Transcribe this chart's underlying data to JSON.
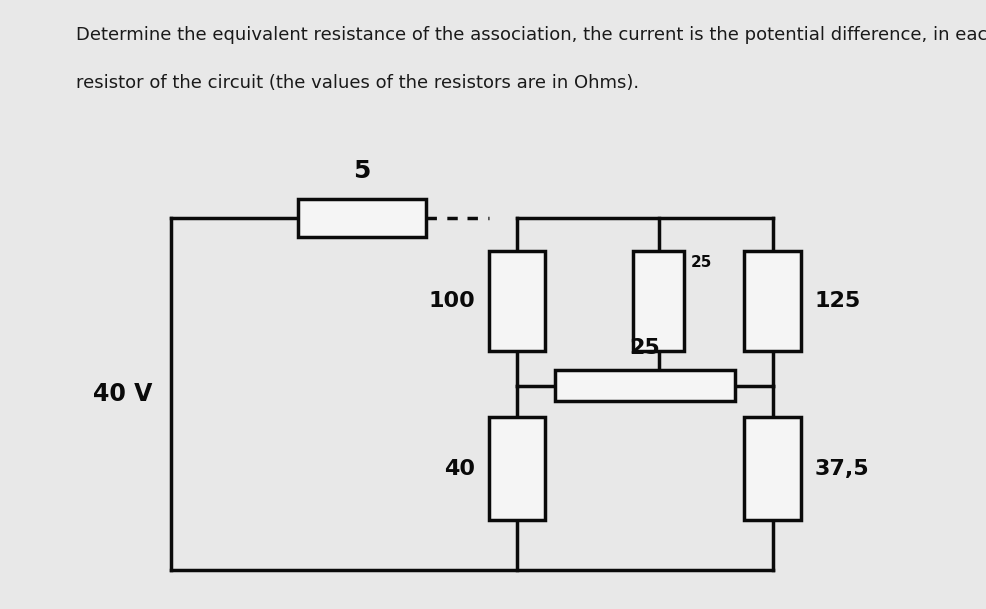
{
  "title_line1": "Determine the equivalent resistance of the association, the current is the potential difference, in each",
  "title_line2": "resistor of the circuit (the values of the resistors are in Ohms).",
  "title_fontsize": 13.0,
  "title_color": "#1a1a1a",
  "circuit_bg": "#b8b8b2",
  "outer_bg": "#e8e8e8",
  "line_color": "#0a0a0a",
  "box_fill": "#f5f5f5",
  "voltage": "40 V",
  "lw": 2.5,
  "label_fs": 16,
  "small_label_fs": 11
}
